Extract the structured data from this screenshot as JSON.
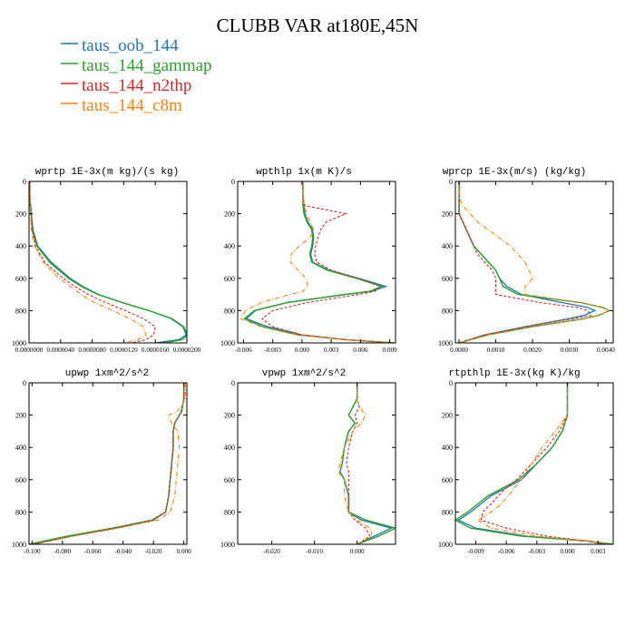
{
  "title": "CLUBB VAR at180E,45N",
  "legend": [
    {
      "label": "taus_oob_144",
      "color": "#1f77b4"
    },
    {
      "label": "taus_144_gammap",
      "color": "#2ca02c"
    },
    {
      "label": "taus_144_n2thp",
      "color": "#d62728"
    },
    {
      "label": "taus_144_c8m",
      "color": "#ff7f0e"
    }
  ],
  "chart_data": [
    {
      "type": "line",
      "title": "wprtp  1E-3x(m kg)/(s kg)",
      "xlim": [
        0.0,
        2e-05
      ],
      "ylim": [
        1000,
        0
      ],
      "xticks": [
        0.0,
        4e-06,
        8e-06,
        1.2e-05,
        1.6e-05,
        2e-05
      ],
      "xtick_labels": [
        "0.0000000",
        "0.0000040",
        "0.0000080",
        "0.0000120",
        "0.0000160",
        "0.0000200"
      ],
      "yticks": [
        0,
        200,
        400,
        600,
        800,
        1000
      ],
      "ytick_labels": [
        "0",
        "200",
        "400",
        "600",
        "800",
        "1000"
      ],
      "y": [
        0,
        100,
        150,
        200,
        300,
        400,
        500,
        600,
        650,
        700,
        750,
        800,
        850,
        900,
        950,
        980,
        1000
      ],
      "series": [
        {
          "name": "taus_oob_144",
          "x": [
            1e-07,
            1e-07,
            2e-07,
            3e-07,
            5e-07,
            1.1e-06,
            2.8e-06,
            5.2e-06,
            6.8e-06,
            8.8e-06,
            1.18e-05,
            1.52e-05,
            1.8e-05,
            1.95e-05,
            1.99e-05,
            1.9e-05,
            1.6e-05
          ]
        },
        {
          "name": "taus_144_gammap",
          "x": [
            1e-07,
            1e-07,
            2e-07,
            3e-07,
            4e-07,
            1e-06,
            2.6e-06,
            5e-06,
            6.6e-06,
            8.7e-06,
            1.18e-05,
            1.52e-05,
            1.81e-05,
            1.96e-05,
            2.01e-05,
            1.94e-05,
            1.7e-05
          ]
        },
        {
          "name": "taus_144_n2thp",
          "x": [
            1e-07,
            1e-07,
            1e-07,
            2e-07,
            4e-07,
            8e-07,
            2e-06,
            4.3e-06,
            5.8e-06,
            7.5e-06,
            9.7e-06,
            1.22e-05,
            1.45e-05,
            1.6e-05,
            1.58e-05,
            1.48e-05,
            1.3e-05
          ]
        },
        {
          "name": "taus_144_c8m",
          "x": [
            0.0,
            1e-07,
            1e-07,
            2e-07,
            3e-07,
            7e-07,
            1.8e-06,
            3.8e-06,
            5.2e-06,
            6.6e-06,
            8.3e-06,
            1.06e-05,
            1.28e-05,
            1.45e-05,
            1.48e-05,
            1.38e-05,
            1.2e-05
          ]
        }
      ]
    },
    {
      "type": "line",
      "title": "wpthlp  1x(m K)/s",
      "xlim": [
        -0.0066,
        0.0096
      ],
      "ylim": [
        1000,
        0
      ],
      "xticks": [
        -0.006,
        -0.003,
        0.0,
        0.003,
        0.006,
        0.009
      ],
      "xtick_labels": [
        "-0.006",
        "-0.003",
        "0.000",
        "0.003",
        "0.006",
        "0.009"
      ],
      "yticks": [
        0,
        200,
        400,
        600,
        800,
        1000
      ],
      "ytick_labels": [
        "0",
        "200",
        "400",
        "600",
        "800",
        "1000"
      ],
      "y": [
        0,
        100,
        150,
        200,
        250,
        300,
        350,
        400,
        450,
        500,
        550,
        600,
        650,
        680,
        700,
        750,
        800,
        850,
        900,
        950,
        980,
        1000
      ],
      "series": [
        {
          "name": "taus_oob_144",
          "x": [
            0.0001,
            0.0001,
            0.0002,
            0.0003,
            0.0006,
            0.0011,
            0.0012,
            0.0011,
            0.0009,
            0.0011,
            0.0028,
            0.0058,
            0.0086,
            0.0072,
            0.0045,
            -0.0015,
            -0.0048,
            -0.0057,
            -0.0035,
            0.0,
            0.0045,
            0.0092
          ]
        },
        {
          "name": "taus_144_gammap",
          "x": [
            0.0001,
            0.0001,
            0.0001,
            0.0002,
            0.0005,
            0.001,
            0.0011,
            0.001,
            0.0008,
            0.001,
            0.0026,
            0.0056,
            0.0082,
            0.007,
            0.0044,
            -0.0015,
            -0.0049,
            -0.0059,
            -0.004,
            -0.0005,
            0.0045,
            0.0095
          ]
        },
        {
          "name": "taus_144_n2thp",
          "x": [
            0.0001,
            0.0001,
            0.0003,
            0.0045,
            0.0025,
            0.0019,
            0.0016,
            0.0014,
            0.0013,
            0.0015,
            0.003,
            0.0058,
            0.008,
            0.0075,
            0.0058,
            0.0005,
            -0.003,
            -0.0041,
            -0.003,
            0.0,
            0.0045,
            0.0092
          ]
        },
        {
          "name": "taus_144_c8m",
          "x": [
            0.0001,
            0.0001,
            0.0002,
            0.0005,
            0.0008,
            0.0012,
            0.0008,
            -0.0003,
            -0.0011,
            -0.0012,
            -0.0004,
            0.0004,
            0.0006,
            0.0001,
            -0.0012,
            -0.0042,
            -0.0058,
            -0.0063,
            -0.0042,
            -0.0005,
            0.0045,
            0.0093
          ]
        }
      ]
    },
    {
      "type": "line",
      "title": "wprcp  1E-3x(m/s) (kg/kg)",
      "xlim": [
        -0.0001,
        0.0042
      ],
      "ylim": [
        1000,
        0
      ],
      "xticks": [
        0.0,
        0.001,
        0.002,
        0.003,
        0.004
      ],
      "xtick_labels": [
        "0.0000",
        "0.0010",
        "0.0020",
        "0.0030",
        "0.0040"
      ],
      "yticks": [
        0,
        200,
        400,
        600,
        800,
        1000
      ],
      "ytick_labels": [
        "0",
        "200",
        "400",
        "600",
        "800",
        "1000"
      ],
      "y": [
        0,
        100,
        150,
        200,
        250,
        300,
        350,
        400,
        450,
        500,
        550,
        600,
        650,
        700,
        750,
        780,
        800,
        830,
        850,
        900,
        950,
        1000
      ],
      "series": [
        {
          "name": "taus_oob_144",
          "x": [
            0.0,
            0.0,
            0.0,
            0.0,
            0.0001,
            0.0002,
            0.0003,
            0.0004,
            0.0006,
            0.0008,
            0.001,
            0.0011,
            0.0013,
            0.0017,
            0.0028,
            0.0035,
            0.0037,
            0.0034,
            0.003,
            0.0018,
            0.0007,
            0.0
          ]
        },
        {
          "name": "taus_144_gammap",
          "x": [
            0.0,
            0.0,
            0.0,
            0.0,
            0.0001,
            0.0002,
            0.0003,
            0.0004,
            0.0006,
            0.0008,
            0.001,
            0.0011,
            0.0012,
            0.0016,
            0.0033,
            0.0039,
            0.0041,
            0.0038,
            0.0034,
            0.002,
            0.0008,
            0.0
          ]
        },
        {
          "name": "taus_144_n2thp",
          "x": [
            0.0,
            0.0,
            0.0,
            0.0,
            0.0001,
            0.0002,
            0.0003,
            0.0004,
            0.0005,
            0.0007,
            0.0009,
            0.001,
            0.001,
            0.001,
            0.0022,
            0.0032,
            0.0035,
            0.0036,
            0.0031,
            0.0018,
            0.0007,
            0.0
          ]
        },
        {
          "name": "taus_144_c8m",
          "x": [
            0.0,
            0.0,
            0.0001,
            0.0003,
            0.0005,
            0.0008,
            0.0011,
            0.0014,
            0.0016,
            0.0018,
            0.0019,
            0.002,
            0.0018,
            0.0018,
            0.0033,
            0.0039,
            0.0041,
            0.0038,
            0.0034,
            0.002,
            0.0008,
            0.0
          ]
        }
      ]
    },
    {
      "type": "line",
      "title": "upwp  1xm^2/s^2",
      "xlim": [
        -0.102,
        0.002
      ],
      "ylim": [
        1000,
        0
      ],
      "xticks": [
        -0.1,
        -0.08,
        -0.06,
        -0.04,
        -0.02,
        0.0
      ],
      "xtick_labels": [
        "-0.100",
        "-0.080",
        "-0.060",
        "-0.040",
        "-0.020",
        "0.000"
      ],
      "yticks": [
        0,
        200,
        400,
        600,
        800,
        1000
      ],
      "ytick_labels": [
        "0",
        "200",
        "400",
        "600",
        "800",
        "1000"
      ],
      "y": [
        0,
        100,
        150,
        180,
        200,
        250,
        300,
        400,
        500,
        600,
        700,
        800,
        850,
        900,
        950,
        1000
      ],
      "series": [
        {
          "name": "taus_oob_144",
          "x": [
            0.0,
            0.0,
            -0.001,
            -0.0015,
            -0.003,
            -0.006,
            -0.007,
            -0.007,
            -0.008,
            -0.009,
            -0.01,
            -0.012,
            -0.02,
            -0.045,
            -0.075,
            -0.1
          ]
        },
        {
          "name": "taus_144_gammap",
          "x": [
            0.0,
            0.0,
            -0.001,
            -0.0015,
            -0.003,
            -0.006,
            -0.007,
            -0.007,
            -0.008,
            -0.009,
            -0.01,
            -0.012,
            -0.021,
            -0.047,
            -0.077,
            -0.102
          ]
        },
        {
          "name": "taus_144_n2thp",
          "x": [
            0.0,
            0.0,
            -0.001,
            -0.002,
            -0.003,
            -0.006,
            -0.007,
            -0.007,
            -0.008,
            -0.009,
            -0.01,
            -0.012,
            -0.02,
            -0.045,
            -0.074,
            -0.099
          ]
        },
        {
          "name": "taus_144_c8m",
          "x": [
            0.001,
            0.001,
            -0.002,
            -0.005,
            -0.01,
            -0.008,
            -0.004,
            -0.003,
            -0.004,
            -0.005,
            -0.006,
            -0.009,
            -0.017,
            -0.043,
            -0.073,
            -0.098
          ]
        }
      ]
    },
    {
      "type": "line",
      "title": "vpwp  1xm^2/s^2",
      "xlim": [
        -0.028,
        0.009
      ],
      "ylim": [
        1000,
        0
      ],
      "xticks": [
        -0.02,
        -0.01,
        0.0
      ],
      "xtick_labels": [
        "-0.020",
        "-0.010",
        "0.000"
      ],
      "yticks": [
        0,
        200,
        400,
        600,
        800,
        1000
      ],
      "ytick_labels": [
        "0",
        "200",
        "400",
        "600",
        "800",
        "1000"
      ],
      "y": [
        0,
        100,
        150,
        200,
        250,
        300,
        400,
        500,
        550,
        600,
        700,
        800,
        850,
        900,
        950,
        1000
      ],
      "series": [
        {
          "name": "taus_oob_144",
          "x": [
            0.0,
            0.0,
            -0.001,
            -0.002,
            -0.0005,
            -0.002,
            -0.003,
            -0.0035,
            -0.004,
            -0.003,
            -0.002,
            -0.002,
            0.001,
            0.008,
            0.004,
            0.0
          ]
        },
        {
          "name": "taus_144_gammap",
          "x": [
            0.0,
            0.0,
            -0.001,
            -0.002,
            -0.0005,
            -0.002,
            -0.003,
            -0.0035,
            -0.004,
            -0.003,
            -0.002,
            -0.002,
            0.002,
            0.009,
            0.005,
            0.0
          ]
        },
        {
          "name": "taus_144_n2thp",
          "x": [
            0.0,
            0.0,
            0.0005,
            -0.0005,
            0.0,
            -0.001,
            -0.002,
            -0.0025,
            -0.002,
            -0.002,
            -0.002,
            -0.002,
            -0.0005,
            0.002,
            0.003,
            0.0
          ]
        },
        {
          "name": "taus_144_c8m",
          "x": [
            0.0,
            0.0,
            0.0005,
            0.002,
            0.001,
            -0.001,
            -0.003,
            -0.004,
            -0.0045,
            -0.003,
            -0.003,
            -0.002,
            0.0,
            0.003,
            0.0035,
            0.0
          ]
        }
      ]
    },
    {
      "type": "line",
      "title": "rtpthlp  1E-3x(kg K)/kg",
      "xlim": [
        -0.011,
        0.0045
      ],
      "ylim": [
        1000,
        0
      ],
      "xticks": [
        -0.009,
        -0.006,
        -0.003,
        0.0,
        0.003
      ],
      "xtick_labels": [
        "-0.009",
        "-0.006",
        "-0.003",
        "0.000",
        "0.003"
      ],
      "yticks": [
        0,
        200,
        400,
        600,
        800,
        1000
      ],
      "ytick_labels": [
        "0",
        "200",
        "400",
        "600",
        "800",
        "1000"
      ],
      "y": [
        0,
        100,
        200,
        300,
        400,
        500,
        600,
        650,
        700,
        750,
        800,
        850,
        900,
        950,
        980,
        1000
      ],
      "series": [
        {
          "name": "taus_oob_144",
          "x": [
            0.0,
            0.0,
            0.0,
            -0.0005,
            -0.0015,
            -0.003,
            -0.0045,
            -0.006,
            -0.0075,
            -0.0085,
            -0.0095,
            -0.0107,
            -0.009,
            -0.004,
            0.002,
            0.004
          ]
        },
        {
          "name": "taus_144_gammap",
          "x": [
            0.0,
            0.0,
            0.0,
            -0.0005,
            -0.0015,
            -0.003,
            -0.0048,
            -0.0063,
            -0.0078,
            -0.0088,
            -0.0098,
            -0.011,
            -0.0095,
            -0.0045,
            0.002,
            0.0045
          ]
        },
        {
          "name": "taus_144_n2thp",
          "x": [
            0.0,
            0.0,
            0.0,
            -0.0008,
            -0.002,
            -0.0035,
            -0.005,
            -0.006,
            -0.0068,
            -0.0075,
            -0.0083,
            -0.0085,
            -0.006,
            -0.002,
            0.002,
            0.0035
          ]
        },
        {
          "name": "taus_144_c8m",
          "x": [
            0.0,
            0.0,
            0.0,
            -0.0012,
            -0.0025,
            -0.0035,
            -0.0045,
            -0.0052,
            -0.0058,
            -0.0065,
            -0.0075,
            -0.0088,
            -0.0075,
            -0.003,
            0.002,
            0.004
          ]
        }
      ]
    }
  ]
}
